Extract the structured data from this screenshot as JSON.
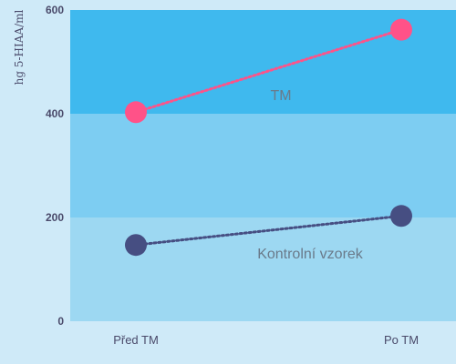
{
  "chart_data": {
    "type": "line",
    "title": "",
    "ylabel": "hg 5-HIAA/ml",
    "xlabel": "",
    "categories": [
      "Před TM",
      "Po TM"
    ],
    "ylim": [
      0,
      600
    ],
    "yticks": [
      0,
      200,
      400,
      600
    ],
    "grid": false,
    "bands": [
      {
        "from": 0,
        "to": 200,
        "color": "#9dd8f2"
      },
      {
        "from": 200,
        "to": 400,
        "color": "#7dcdf2"
      },
      {
        "from": 400,
        "to": 600,
        "color": "#3fb9ee"
      }
    ],
    "series": [
      {
        "name": "TM",
        "values": [
          403,
          562
        ],
        "color": "#ff5288"
      },
      {
        "name": "Kontrolní vzorek",
        "values": [
          147,
          203
        ],
        "color": "#464e82"
      }
    ]
  }
}
